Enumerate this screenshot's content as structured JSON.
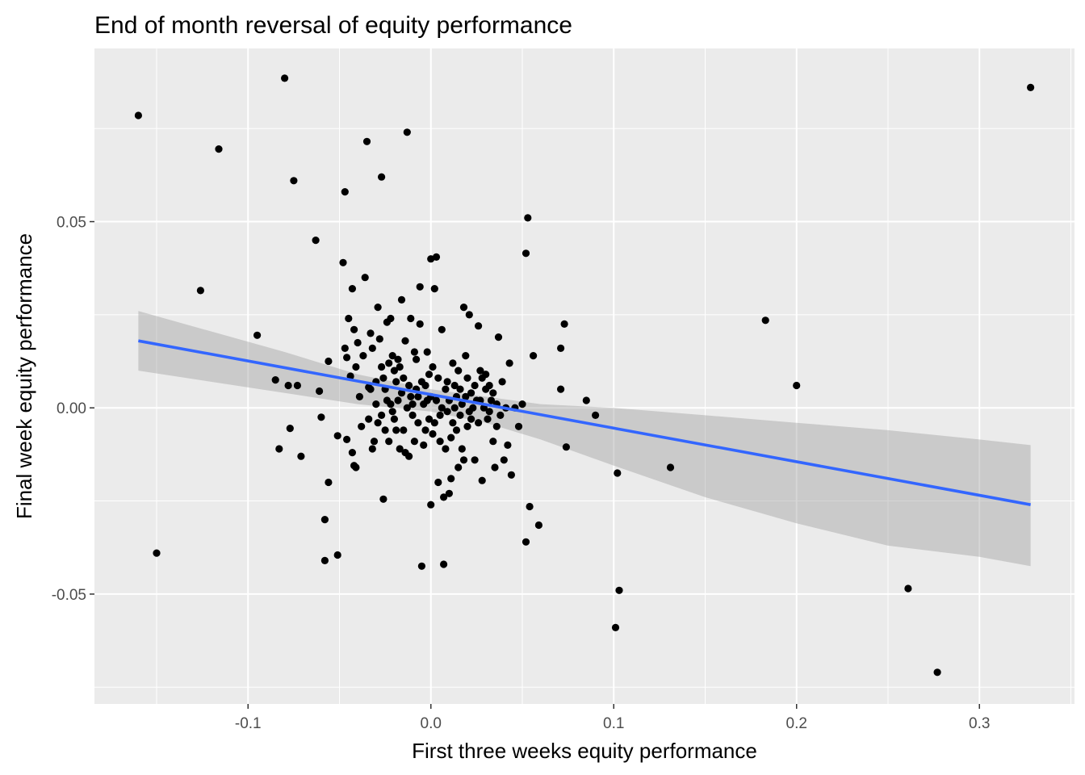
{
  "chart_data": {
    "type": "scatter",
    "title": "End of month reversal of equity performance",
    "xlabel": "First three weeks equity performance",
    "ylabel": "Final week equity performance",
    "xlim": [
      -0.184,
      0.352
    ],
    "ylim": [
      -0.0795,
      0.0965
    ],
    "x_ticks": [
      -0.1,
      0.0,
      0.1,
      0.2,
      0.3
    ],
    "x_tick_labels": [
      "-0.1",
      "0.0",
      "0.1",
      "0.2",
      "0.3"
    ],
    "y_ticks": [
      -0.05,
      0.0,
      0.05
    ],
    "y_tick_labels": [
      "-0.05",
      "0.00",
      "0.05"
    ],
    "grid": true,
    "colors": {
      "panel_bg": "#ebebeb",
      "grid": "#ffffff",
      "points": "#000000",
      "fit_line": "#3366ff",
      "ribbon": "#999999"
    },
    "points": [
      [
        -0.16,
        0.0785
      ],
      [
        -0.15,
        -0.039
      ],
      [
        -0.116,
        0.0695
      ],
      [
        -0.126,
        0.0315
      ],
      [
        -0.095,
        0.0195
      ],
      [
        -0.085,
        0.0075
      ],
      [
        -0.083,
        -0.011
      ],
      [
        -0.08,
        0.0885
      ],
      [
        -0.078,
        0.006
      ],
      [
        -0.077,
        -0.0055
      ],
      [
        -0.075,
        0.061
      ],
      [
        -0.073,
        0.006
      ],
      [
        -0.071,
        -0.013
      ],
      [
        -0.063,
        0.045
      ],
      [
        -0.061,
        0.0045
      ],
      [
        -0.06,
        -0.0025
      ],
      [
        -0.058,
        -0.03
      ],
      [
        -0.058,
        -0.041
      ],
      [
        -0.056,
        -0.02
      ],
      [
        -0.056,
        0.0125
      ],
      [
        -0.051,
        -0.0395
      ],
      [
        -0.051,
        -0.0075
      ],
      [
        -0.048,
        0.039
      ],
      [
        -0.047,
        0.058
      ],
      [
        -0.047,
        0.016
      ],
      [
        -0.046,
        -0.0085
      ],
      [
        -0.046,
        0.0135
      ],
      [
        -0.045,
        0.024
      ],
      [
        -0.044,
        0.0085
      ],
      [
        -0.043,
        0.032
      ],
      [
        -0.043,
        -0.012
      ],
      [
        -0.042,
        -0.0155
      ],
      [
        -0.042,
        0.021
      ],
      [
        -0.041,
        0.011
      ],
      [
        -0.041,
        -0.016
      ],
      [
        -0.04,
        0.0175
      ],
      [
        -0.039,
        0.003
      ],
      [
        -0.038,
        -0.005
      ],
      [
        -0.037,
        0.014
      ],
      [
        -0.036,
        0.035
      ],
      [
        -0.035,
        0.0715
      ],
      [
        -0.034,
        0.0055
      ],
      [
        -0.034,
        -0.003
      ],
      [
        -0.033,
        0.02
      ],
      [
        -0.033,
        0.005
      ],
      [
        -0.032,
        0.016
      ],
      [
        -0.032,
        -0.011
      ],
      [
        -0.031,
        -0.009
      ],
      [
        -0.03,
        0.001
      ],
      [
        -0.03,
        0.007
      ],
      [
        -0.029,
        -0.004
      ],
      [
        -0.029,
        0.027
      ],
      [
        -0.028,
        0.0185
      ],
      [
        -0.027,
        0.062
      ],
      [
        -0.027,
        0.011
      ],
      [
        -0.027,
        -0.002
      ],
      [
        -0.026,
        -0.0245
      ],
      [
        -0.026,
        0.008
      ],
      [
        -0.025,
        0.005
      ],
      [
        -0.025,
        -0.006
      ],
      [
        -0.024,
        0.002
      ],
      [
        -0.024,
        0.023
      ],
      [
        -0.023,
        0.012
      ],
      [
        -0.023,
        -0.009
      ],
      [
        -0.022,
        0.024
      ],
      [
        -0.022,
        0.001
      ],
      [
        -0.021,
        0.014
      ],
      [
        -0.021,
        -0.001
      ],
      [
        -0.02,
        0.01
      ],
      [
        -0.02,
        -0.003
      ],
      [
        -0.019,
        0.007
      ],
      [
        -0.019,
        -0.006
      ],
      [
        -0.018,
        0.002
      ],
      [
        -0.018,
        0.013
      ],
      [
        -0.017,
        0.011
      ],
      [
        -0.017,
        -0.011
      ],
      [
        -0.016,
        0.004
      ],
      [
        -0.016,
        0.029
      ],
      [
        -0.015,
        0.008
      ],
      [
        -0.015,
        -0.006
      ],
      [
        -0.014,
        -0.012
      ],
      [
        -0.014,
        0.018
      ],
      [
        -0.013,
        0.074
      ],
      [
        -0.013,
        0.0
      ],
      [
        -0.012,
        0.006
      ],
      [
        -0.012,
        -0.013
      ],
      [
        -0.011,
        0.003
      ],
      [
        -0.011,
        0.024
      ],
      [
        -0.01,
        0.001
      ],
      [
        -0.01,
        -0.002
      ],
      [
        -0.009,
        0.015
      ],
      [
        -0.009,
        -0.009
      ],
      [
        -0.008,
        0.005
      ],
      [
        -0.008,
        0.013
      ],
      [
        -0.007,
        -0.004
      ],
      [
        -0.007,
        0.003
      ],
      [
        -0.006,
        0.0325
      ],
      [
        -0.006,
        0.0225
      ],
      [
        -0.005,
        -0.0425
      ],
      [
        -0.005,
        0.007
      ],
      [
        -0.004,
        -0.01
      ],
      [
        -0.004,
        0.001
      ],
      [
        -0.003,
        0.006
      ],
      [
        -0.003,
        -0.006
      ],
      [
        -0.002,
        0.002
      ],
      [
        -0.002,
        0.015
      ],
      [
        -0.001,
        -0.003
      ],
      [
        -0.001,
        0.009
      ],
      [
        0.0,
        0.04
      ],
      [
        0.0,
        -0.026
      ],
      [
        0.0,
        0.003
      ],
      [
        0.001,
        -0.007
      ],
      [
        0.001,
        0.011
      ],
      [
        0.002,
        0.032
      ],
      [
        0.002,
        -0.004
      ],
      [
        0.003,
        0.0405
      ],
      [
        0.003,
        0.002
      ],
      [
        0.004,
        -0.02
      ],
      [
        0.004,
        0.008
      ],
      [
        0.005,
        -0.009
      ],
      [
        0.005,
        -0.002
      ],
      [
        0.006,
        0.021
      ],
      [
        0.006,
        0.0
      ],
      [
        0.007,
        -0.024
      ],
      [
        0.007,
        -0.042
      ],
      [
        0.008,
        0.005
      ],
      [
        0.008,
        -0.011
      ],
      [
        0.009,
        0.007
      ],
      [
        0.009,
        -0.001
      ],
      [
        0.01,
        -0.023
      ],
      [
        0.01,
        0.002
      ],
      [
        0.011,
        -0.019
      ],
      [
        0.011,
        -0.008
      ],
      [
        0.012,
        0.012
      ],
      [
        0.012,
        -0.004
      ],
      [
        0.013,
        0.0
      ],
      [
        0.013,
        0.006
      ],
      [
        0.014,
        -0.006
      ],
      [
        0.014,
        0.003
      ],
      [
        0.015,
        -0.016
      ],
      [
        0.015,
        0.01
      ],
      [
        0.016,
        -0.002
      ],
      [
        0.016,
        0.005
      ],
      [
        0.017,
        -0.011
      ],
      [
        0.017,
        0.001
      ],
      [
        0.018,
        0.027
      ],
      [
        0.018,
        -0.014
      ],
      [
        0.019,
        0.014
      ],
      [
        0.019,
        0.003
      ],
      [
        0.02,
        -0.005
      ],
      [
        0.02,
        0.008
      ],
      [
        0.021,
        0.025
      ],
      [
        0.021,
        -0.001
      ],
      [
        0.022,
        -0.003
      ],
      [
        0.022,
        0.004
      ],
      [
        0.023,
        0.0
      ],
      [
        0.024,
        -0.014
      ],
      [
        0.024,
        0.006
      ],
      [
        0.025,
        0.002
      ],
      [
        0.026,
        0.022
      ],
      [
        0.026,
        -0.004
      ],
      [
        0.027,
        0.01
      ],
      [
        0.027,
        0.002
      ],
      [
        0.028,
        -0.0195
      ],
      [
        0.028,
        0.008
      ],
      [
        0.029,
        0.0
      ],
      [
        0.03,
        0.005
      ],
      [
        0.03,
        0.009
      ],
      [
        0.031,
        -0.003
      ],
      [
        0.032,
        0.006
      ],
      [
        0.032,
        -0.001
      ],
      [
        0.033,
        0.002
      ],
      [
        0.034,
        -0.009
      ],
      [
        0.034,
        0.004
      ],
      [
        0.035,
        -0.016
      ],
      [
        0.036,
        0.001
      ],
      [
        0.036,
        -0.005
      ],
      [
        0.037,
        0.019
      ],
      [
        0.038,
        -0.002
      ],
      [
        0.039,
        0.007
      ],
      [
        0.04,
        -0.014
      ],
      [
        0.041,
        0.0
      ],
      [
        0.042,
        -0.01
      ],
      [
        0.043,
        0.012
      ],
      [
        0.044,
        -0.018
      ],
      [
        0.046,
        0.0
      ],
      [
        0.048,
        -0.005
      ],
      [
        0.05,
        0.001
      ],
      [
        0.052,
        0.0415
      ],
      [
        0.052,
        -0.036
      ],
      [
        0.053,
        0.051
      ],
      [
        0.054,
        -0.0265
      ],
      [
        0.056,
        0.014
      ],
      [
        0.059,
        -0.0315
      ],
      [
        0.071,
        0.005
      ],
      [
        0.071,
        0.016
      ],
      [
        0.073,
        0.0225
      ],
      [
        0.074,
        -0.0105
      ],
      [
        0.085,
        0.002
      ],
      [
        0.09,
        -0.002
      ],
      [
        0.101,
        -0.059
      ],
      [
        0.102,
        -0.0175
      ],
      [
        0.103,
        -0.049
      ],
      [
        0.131,
        -0.016
      ],
      [
        0.183,
        0.0235
      ],
      [
        0.2,
        0.006
      ],
      [
        0.261,
        -0.0485
      ],
      [
        0.277,
        -0.071
      ],
      [
        0.328,
        0.086
      ]
    ],
    "fit_line": {
      "x": [
        -0.16,
        0.328
      ],
      "y": [
        0.018,
        -0.026
      ]
    },
    "ribbon": {
      "x": [
        -0.16,
        -0.08,
        -0.04,
        0.0,
        0.03,
        0.06,
        0.1,
        0.15,
        0.2,
        0.25,
        0.3,
        0.328
      ],
      "lower": [
        0.01,
        0.004,
        0.001,
        -0.001,
        -0.004,
        -0.0085,
        -0.0155,
        -0.024,
        -0.031,
        -0.037,
        -0.04,
        -0.0425
      ],
      "upper": [
        0.026,
        0.015,
        0.009,
        0.005,
        0.003,
        0.001,
        0.0,
        -0.002,
        -0.004,
        -0.006,
        -0.0085,
        -0.01
      ]
    }
  }
}
